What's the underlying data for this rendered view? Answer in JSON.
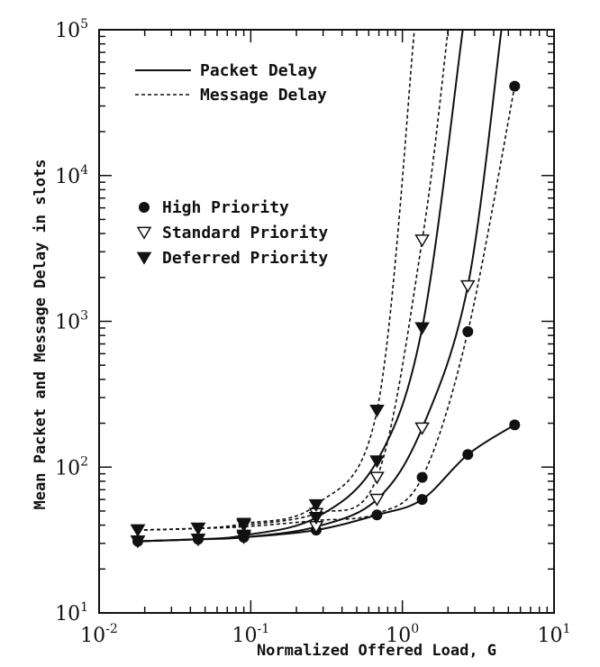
{
  "chart_data": {
    "type": "line",
    "title": "",
    "xlabel": "Normalized Offered Load,  G",
    "ylabel": "Mean Packet and Message Delay in slots",
    "x_scale": "log",
    "y_scale": "log",
    "xlim": [
      0.01,
      10
    ],
    "ylim": [
      10,
      100000
    ],
    "grid": false,
    "x_ticks": [
      {
        "value": 0.01,
        "base": "10",
        "exp": "-2"
      },
      {
        "value": 0.1,
        "base": "10",
        "exp": "-1"
      },
      {
        "value": 1,
        "base": "10",
        "exp": "0"
      },
      {
        "value": 10,
        "base": "10",
        "exp": "1"
      }
    ],
    "y_ticks": [
      {
        "value": 10,
        "base": "10",
        "exp": "1"
      },
      {
        "value": 100,
        "base": "10",
        "exp": "2"
      },
      {
        "value": 1000,
        "base": "10",
        "exp": "3"
      },
      {
        "value": 10000,
        "base": "10",
        "exp": "4"
      },
      {
        "value": 100000,
        "base": "10",
        "exp": "5"
      }
    ],
    "legend_lines": [
      {
        "label": "Packet Delay",
        "style": "solid"
      },
      {
        "label": "Message Delay",
        "style": "dotted"
      }
    ],
    "legend_markers": [
      {
        "label": "High Priority",
        "marker": "circle"
      },
      {
        "label": "Standard Priority",
        "marker": "triangle-down-open"
      },
      {
        "label": "Deferred Priority",
        "marker": "triangle-down-filled"
      }
    ],
    "legend_placement": "top-left",
    "series": [
      {
        "priority": "High",
        "delay": "Packet",
        "style": "solid",
        "marker": "circle",
        "x": [
          0.018,
          0.045,
          0.09,
          0.27,
          0.68,
          1.35,
          2.7,
          5.5
        ],
        "y": [
          31,
          32,
          33,
          37,
          47,
          60,
          122,
          195
        ]
      },
      {
        "priority": "High",
        "delay": "Message",
        "style": "dotted",
        "marker": "circle",
        "x": [
          0.018,
          0.045,
          0.09,
          0.27,
          0.68,
          1.35,
          2.7,
          5.5
        ],
        "y": [
          37,
          38,
          39,
          43,
          48,
          85,
          850,
          41000
        ]
      },
      {
        "priority": "Standard",
        "delay": "Packet",
        "style": "solid",
        "marker": "triangle-down-open",
        "x": [
          0.018,
          0.045,
          0.09,
          0.27,
          0.68,
          1.35,
          2.7,
          4.5
        ],
        "y": [
          31,
          32,
          33,
          39,
          60,
          185,
          1750,
          100000
        ]
      },
      {
        "priority": "Standard",
        "delay": "Message",
        "style": "dotted",
        "marker": "triangle-down-open",
        "x": [
          0.018,
          0.045,
          0.09,
          0.27,
          0.68,
          1.35,
          2.0
        ],
        "y": [
          37,
          38,
          40,
          48,
          85,
          3600,
          100000
        ]
      },
      {
        "priority": "Deferred",
        "delay": "Packet",
        "style": "solid",
        "marker": "triangle-down-filled",
        "x": [
          0.018,
          0.045,
          0.09,
          0.27,
          0.68,
          1.35,
          2.5
        ],
        "y": [
          31,
          32,
          34,
          45,
          110,
          900,
          100000
        ]
      },
      {
        "priority": "Deferred",
        "delay": "Message",
        "style": "dotted",
        "marker": "triangle-down-filled",
        "x": [
          0.018,
          0.045,
          0.09,
          0.27,
          0.68,
          1.2
        ],
        "y": [
          37,
          38,
          41,
          55,
          245,
          100000
        ]
      }
    ]
  }
}
